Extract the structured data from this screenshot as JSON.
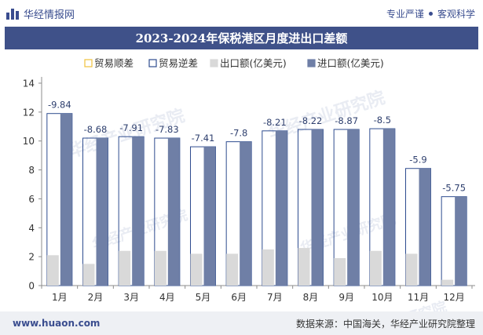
{
  "header": {
    "brand": "华经情报网",
    "slogan_left": "专业严谨",
    "slogan_right": "客观科学"
  },
  "title": "2023-2024年保税港区月度进出口差额",
  "footer": {
    "url": "www.huaon.com",
    "source": "数据来源：中国海关，华经产业研究院整理"
  },
  "watermark": "华经产业研究院",
  "colors": {
    "surplus": "#f0c23c",
    "deficit": "#2e4c8f",
    "export": "#d9d9d9",
    "import": "#6f7fa6",
    "title_bg": "#3f5189"
  },
  "chart_data": {
    "type": "bar",
    "categories": [
      "1月",
      "2月",
      "3月",
      "4月",
      "5月",
      "6月",
      "7月",
      "8月",
      "9月",
      "10月",
      "11月",
      "12月"
    ],
    "series": [
      {
        "name": "贸易顺差",
        "values": [
          null,
          null,
          null,
          null,
          null,
          null,
          null,
          null,
          null,
          null,
          null,
          null
        ]
      },
      {
        "name": "贸易逆差",
        "values": [
          -9.84,
          -8.68,
          -7.91,
          -7.83,
          -7.41,
          -7.8,
          -8.21,
          -8.22,
          -8.87,
          -8.5,
          -5.9,
          -5.75
        ]
      },
      {
        "name": "出口额(亿美元)",
        "values": [
          2.1,
          1.5,
          2.4,
          2.4,
          2.2,
          2.2,
          2.5,
          2.6,
          1.9,
          2.4,
          2.2,
          0.4
        ]
      },
      {
        "name": "进口额(亿美元)",
        "values": [
          11.9,
          10.2,
          10.3,
          10.2,
          9.6,
          9.95,
          10.7,
          10.8,
          10.8,
          10.85,
          8.1,
          6.15
        ]
      }
    ],
    "data_labels": [
      "-9.84",
      "-8.68",
      "-7.91",
      "-7.83",
      "-7.41",
      "-7.8",
      "-8.21",
      "-8.22",
      "-8.87",
      "-8.5",
      "-5.9",
      "-5.75"
    ],
    "yticks": [
      "0",
      "2",
      "4",
      "6",
      "8",
      "10",
      "12",
      "14"
    ],
    "ylim": [
      0,
      14
    ],
    "legend_position": "top",
    "grid": false
  }
}
